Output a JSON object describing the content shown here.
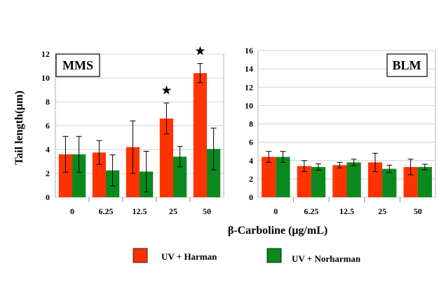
{
  "colors": {
    "harman": "#ff3300",
    "norharman": "#0a8a1e",
    "grid": "#d0d0d0",
    "axis": "#888888"
  },
  "shared": {
    "xlabel": "β-Carboline  (μg/mL)",
    "legend": [
      "UV + Harman",
      "UV + Norharman"
    ]
  },
  "chart_data": [
    {
      "type": "bar",
      "panel_label": "MMS",
      "ylabel": "Tail length(μm)",
      "categories": [
        "0",
        "6.25",
        "12.5",
        "25",
        "50"
      ],
      "ylim": [
        0,
        12
      ],
      "yticks": [
        0,
        2,
        4,
        6,
        8,
        10,
        12
      ],
      "grid": true,
      "series": [
        {
          "name": "UV + Harman",
          "values": [
            3.6,
            3.75,
            4.2,
            6.6,
            10.4
          ],
          "errors": [
            1.5,
            1.0,
            2.2,
            1.3,
            0.8
          ]
        },
        {
          "name": "UV + Norharman",
          "values": [
            3.6,
            2.25,
            2.15,
            3.4,
            4.05
          ],
          "errors": [
            1.5,
            1.3,
            1.7,
            0.85,
            1.75
          ]
        }
      ],
      "annotations": [
        {
          "category": "25",
          "symbol": "★"
        },
        {
          "category": "50",
          "symbol": "★"
        }
      ]
    },
    {
      "type": "bar",
      "panel_label": "BLM",
      "categories": [
        "0",
        "6.25",
        "12.5",
        "25",
        "50"
      ],
      "ylim": [
        0,
        16
      ],
      "yticks": [
        0,
        2,
        4,
        6,
        8,
        10,
        12,
        14,
        16
      ],
      "grid": true,
      "series": [
        {
          "name": "UV + Harman",
          "values": [
            4.4,
            3.4,
            3.5,
            3.8,
            3.3
          ],
          "errors": [
            0.6,
            0.6,
            0.3,
            1.0,
            0.85
          ]
        },
        {
          "name": "UV + Norharman",
          "values": [
            4.4,
            3.3,
            3.8,
            3.1,
            3.3
          ],
          "errors": [
            0.6,
            0.35,
            0.35,
            0.4,
            0.3
          ]
        }
      ]
    }
  ]
}
